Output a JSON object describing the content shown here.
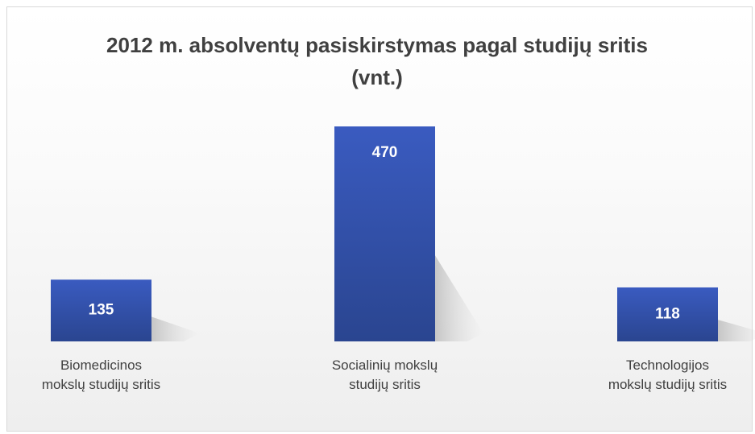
{
  "chart_data": {
    "type": "bar",
    "title": "2012 m. absolventų pasiskirstymas pagal studijų sritis (vnt.)",
    "categories": [
      "Biomedicinos mokslų studijų sritis",
      "Socialinių mokslų studijų sritis",
      "Technologijos mokslų studijų sritis"
    ],
    "values": [
      135,
      470,
      118
    ],
    "color": "#3552a8"
  }
}
